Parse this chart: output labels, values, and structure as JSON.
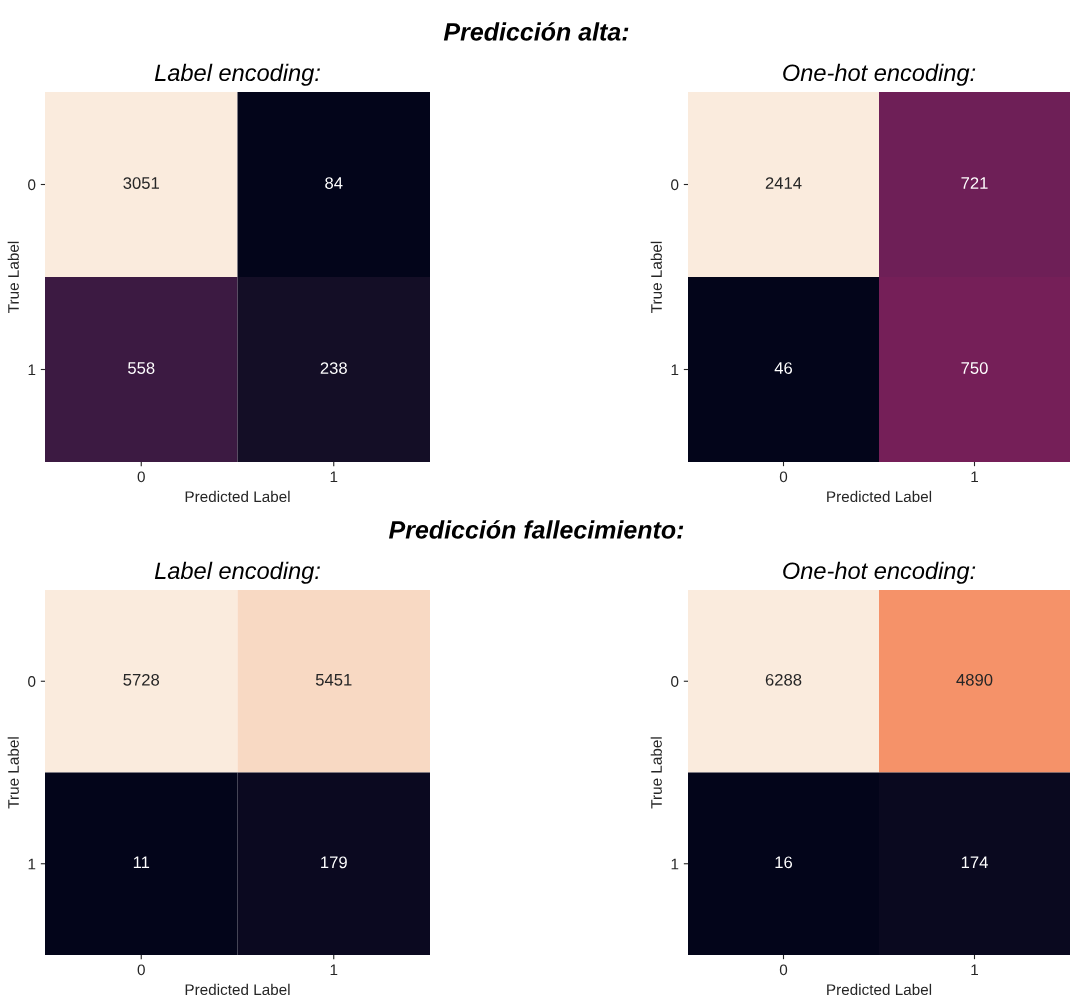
{
  "chart_data": [
    {
      "type": "heatmap",
      "title": "Label encoding:",
      "annotations": [
        "Predicción alta:"
      ],
      "xlabel": "Predicted Label",
      "ylabel": "True Label",
      "categories": [
        "0",
        "1"
      ],
      "y_categories": [
        "0",
        "1"
      ],
      "cells": [
        [
          3051,
          84
        ],
        [
          558,
          238
        ]
      ],
      "data_labels": true
    },
    {
      "type": "heatmap",
      "title": "One-hot encoding:",
      "xlabel": "Predicted Label",
      "ylabel": "True Label",
      "categories": [
        "0",
        "1"
      ],
      "y_categories": [
        "0",
        "1"
      ],
      "cells": [
        [
          2414,
          721
        ],
        [
          46,
          750
        ]
      ],
      "data_labels": true
    },
    {
      "type": "heatmap",
      "title": "Label encoding:",
      "annotations": [
        "Predicción fallecimiento:"
      ],
      "xlabel": "Predicted Label",
      "ylabel": "True Label",
      "categories": [
        "0",
        "1"
      ],
      "y_categories": [
        "0",
        "1"
      ],
      "cells": [
        [
          5728,
          5451
        ],
        [
          11,
          179
        ]
      ],
      "data_labels": true
    },
    {
      "type": "heatmap",
      "title": "One-hot encoding:",
      "xlabel": "Predicted Label",
      "ylabel": "True Label",
      "categories": [
        "0",
        "1"
      ],
      "y_categories": [
        "0",
        "1"
      ],
      "cells": [
        [
          6288,
          4890
        ],
        [
          16,
          174
        ]
      ],
      "data_labels": true
    }
  ]
}
